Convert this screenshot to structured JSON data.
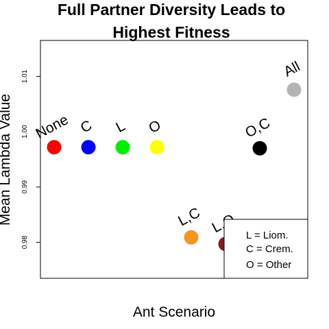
{
  "chart_data": {
    "type": "scatter",
    "title_lines": [
      "Full Partner Diversity Leads to",
      "Highest Fitness"
    ],
    "xlabel": "Ant Scenario",
    "ylabel": "Mean Lambda Value",
    "ylim": [
      0.9735,
      1.0165
    ],
    "xlim": [
      0.6,
      8.4
    ],
    "yticks": [
      0.98,
      0.99,
      1.0,
      1.01
    ],
    "ytick_labels": [
      "0.98",
      "0.99",
      "1.00",
      "1.01"
    ],
    "grid": false,
    "points": [
      {
        "label": "None",
        "x": 1,
        "y": 0.9972,
        "color": "#ff0000"
      },
      {
        "label": "C",
        "x": 2,
        "y": 0.9972,
        "color": "#0000ff"
      },
      {
        "label": "L",
        "x": 3,
        "y": 0.9972,
        "color": "#00ee00"
      },
      {
        "label": "O",
        "x": 4,
        "y": 0.9972,
        "color": "#ffff00"
      },
      {
        "label": "L,C",
        "x": 5,
        "y": 0.9809,
        "color": "#f7961e"
      },
      {
        "label": "L,O",
        "x": 6,
        "y": 0.9797,
        "color": "#8b1a1a"
      },
      {
        "label": "O,C",
        "x": 7,
        "y": 0.997,
        "color": "#000000"
      },
      {
        "label": "All",
        "x": 8,
        "y": 1.0076,
        "color": "#b3b3b3"
      }
    ],
    "legend": {
      "position": "bottom-right",
      "entries": [
        "L = Liom.",
        "C = Crem.",
        "O = Other"
      ]
    }
  }
}
